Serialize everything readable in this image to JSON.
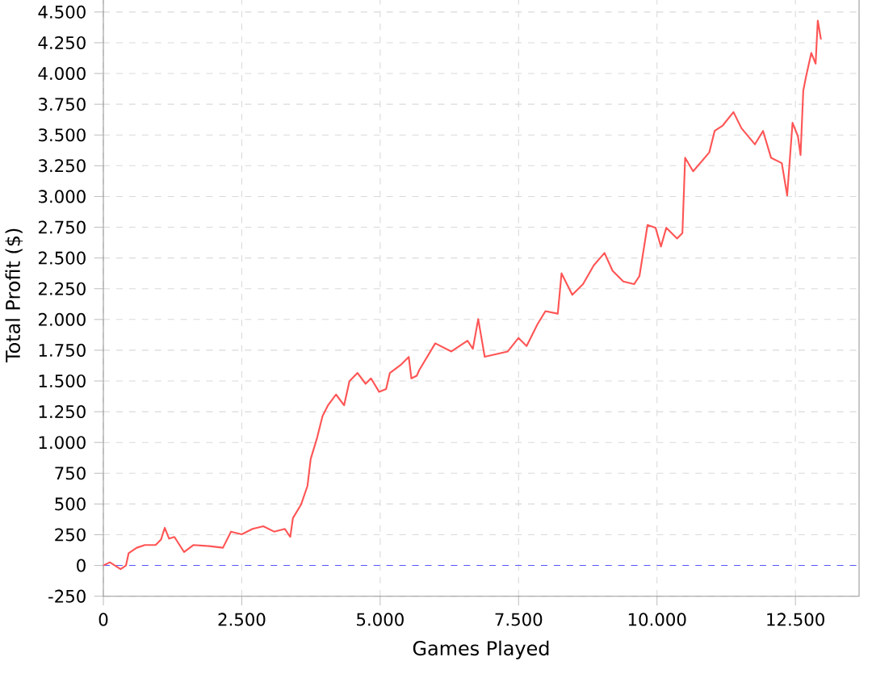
{
  "chart_data": {
    "type": "line",
    "xlabel": "Games Played",
    "ylabel": "Total Profit ($)",
    "grid": true,
    "marker": "none",
    "line_style": "solid",
    "xlim": [
      0,
      13650
    ],
    "ylim": [
      -250,
      4650
    ],
    "xticks": [
      0,
      {
        "value": 2500,
        "label": "2.500"
      },
      {
        "value": 5000,
        "label": "5.000"
      },
      {
        "value": 7500,
        "label": "7.500"
      },
      {
        "value": 10000,
        "label": "10.000"
      },
      {
        "value": 12500,
        "label": "12.500"
      }
    ],
    "yticks": [
      -250,
      0,
      250,
      500,
      750,
      {
        "value": 1000,
        "label": "1.000"
      },
      {
        "value": 1250,
        "label": "1.250"
      },
      {
        "value": 1500,
        "label": "1.500"
      },
      {
        "value": 1750,
        "label": "1.750"
      },
      {
        "value": 2000,
        "label": "2.000"
      },
      {
        "value": 2250,
        "label": "2.250"
      },
      {
        "value": 2500,
        "label": "2.500"
      },
      {
        "value": 2750,
        "label": "2.750"
      },
      {
        "value": 3000,
        "label": "3.000"
      },
      {
        "value": 3250,
        "label": "3.250"
      },
      {
        "value": 3500,
        "label": "3.500"
      },
      {
        "value": 3750,
        "label": "3.750"
      },
      {
        "value": 4000,
        "label": "4.000"
      },
      {
        "value": 4250,
        "label": "4.250"
      },
      {
        "value": 4500,
        "label": "4.500"
      }
    ],
    "ref_lines": [
      {
        "axis": "y",
        "value": 0,
        "color": "#5555ff",
        "line_style": "dashed"
      }
    ],
    "series": [
      {
        "color": "#ff5555",
        "x": [
          0,
          117,
          311,
          409,
          457,
          603,
          749,
          944,
          1041,
          1109,
          1187,
          1284,
          1459,
          1625,
          1916,
          2160,
          2305,
          2500,
          2695,
          2890,
          3084,
          3279,
          3376,
          3424,
          3570,
          3687,
          3745,
          3862,
          3959,
          4057,
          4202,
          4348,
          4445,
          4591,
          4737,
          4834,
          4980,
          5107,
          5175,
          5370,
          5516,
          5564,
          5661,
          5704,
          5995,
          6286,
          6577,
          6674,
          6771,
          6888,
          7305,
          7499,
          7645,
          7839,
          7985,
          8208,
          8276,
          8470,
          8664,
          8858,
          9052,
          9198,
          9392,
          9586,
          9683,
          9829,
          9974,
          10071,
          10168,
          10362,
          10459,
          10508,
          10653,
          10944,
          11041,
          11187,
          11381,
          11526,
          11769,
          11915,
          12060,
          12254,
          12351,
          12448,
          12545,
          12593,
          12642,
          12690,
          12787,
          12865,
          12904,
          12962
        ],
        "values": [
          0,
          26,
          -30,
          0,
          100,
          144,
          166,
          166,
          210,
          306,
          218,
          232,
          109,
          166,
          157,
          144,
          275,
          253,
          297,
          319,
          275,
          297,
          232,
          385,
          494,
          647,
          866,
          1040,
          1215,
          1302,
          1390,
          1302,
          1499,
          1565,
          1477,
          1521,
          1412,
          1434,
          1565,
          1630,
          1696,
          1521,
          1543,
          1587,
          1806,
          1740,
          1828,
          1762,
          2003,
          1697,
          1740,
          1850,
          1784,
          1959,
          2068,
          2047,
          2375,
          2200,
          2287,
          2440,
          2541,
          2396,
          2309,
          2287,
          2353,
          2768,
          2746,
          2593,
          2746,
          2659,
          2703,
          3315,
          3205,
          3358,
          3533,
          3577,
          3686,
          3555,
          3424,
          3533,
          3315,
          3271,
          3009,
          3599,
          3490,
          3337,
          3861,
          3971,
          4167,
          4080,
          4430,
          4277
        ]
      }
    ]
  }
}
